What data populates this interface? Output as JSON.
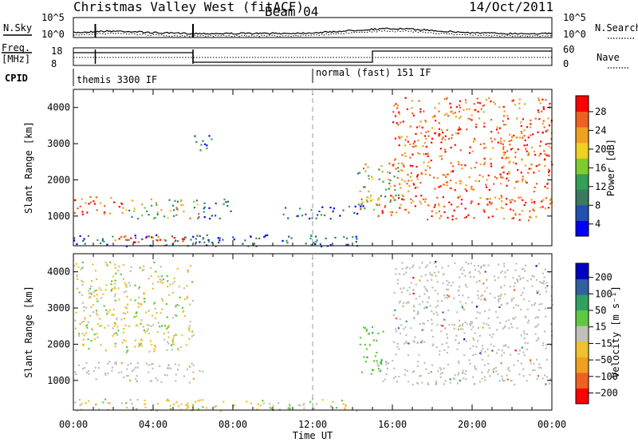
{
  "header": {
    "title": "Christmas Valley West (fitACF)",
    "beam": "Beam 04",
    "date": "14/Oct/2011"
  },
  "params": {
    "nsky_label": "N.Sky",
    "nsearch_label": "N.Search",
    "nsky_ticks": [
      "10^5",
      "10^0"
    ],
    "nsearch_ticks": [
      "10^5",
      "10^0"
    ],
    "freq_label_1": "Freq.",
    "freq_label_2": "[MHz]",
    "freq_ticks": [
      "18",
      "8"
    ],
    "nave_label": "Nave",
    "nave_ticks": [
      "60",
      "0"
    ],
    "cpid_label": "CPID",
    "cpid_modes": [
      {
        "name": "themis 3300 IF",
        "start": 0,
        "end": 12
      },
      {
        "name": "normal (fast) 151 IF",
        "start": 12,
        "end": 24
      }
    ]
  },
  "chart_data": [
    {
      "type": "heatmap",
      "name": "power",
      "ylabel": "Slant Range [km]",
      "xlabel": "Time UT",
      "xlim": [
        0,
        24
      ],
      "ylim": [
        180,
        4500
      ],
      "yticks": [
        "1000",
        "2000",
        "3000",
        "4000"
      ],
      "colorbar": {
        "label": "Power [dB]",
        "ticks": [
          "28",
          "24",
          "20",
          "16",
          "12",
          "8",
          "4"
        ],
        "range": [
          0,
          30
        ],
        "colors": [
          "#0000ff",
          "#2050b0",
          "#3a7a60",
          "#33a055",
          "#80cc30",
          "#f0d020",
          "#f0a020",
          "#f06020",
          "#ff0000"
        ]
      },
      "echo_regions": [
        {
          "t0": 0.0,
          "t1": 2.4,
          "r0": 1050,
          "r1": 1550,
          "level": "high"
        },
        {
          "t0": 2.4,
          "t1": 6.5,
          "r0": 950,
          "r1": 1500,
          "level": "mid"
        },
        {
          "t0": 6.5,
          "t1": 8.0,
          "r0": 950,
          "r1": 1500,
          "level": "low"
        },
        {
          "t0": 0.0,
          "t1": 14.5,
          "r0": 180,
          "r1": 500,
          "level": "low"
        },
        {
          "t0": 2.0,
          "t1": 5.8,
          "r0": 200,
          "r1": 480,
          "level": "high"
        },
        {
          "t0": 10.5,
          "t1": 14.5,
          "r0": 950,
          "r1": 1300,
          "level": "low"
        },
        {
          "t0": 14.2,
          "t1": 16.5,
          "r0": 1200,
          "r1": 2500,
          "level": "mid"
        },
        {
          "t0": 15.2,
          "t1": 24.0,
          "r0": 900,
          "r1": 1600,
          "level": "high"
        },
        {
          "t0": 16.0,
          "t1": 24.0,
          "r0": 1700,
          "r1": 4300,
          "level": "high"
        },
        {
          "t0": 6.0,
          "t1": 7.0,
          "r0": 2800,
          "r1": 3300,
          "level": "low"
        }
      ]
    },
    {
      "type": "heatmap",
      "name": "velocity",
      "ylabel": "Slant Range [km]",
      "xlabel": "Time UT",
      "xlim": [
        0,
        24
      ],
      "ylim": [
        180,
        4500
      ],
      "yticks": [
        "1000",
        "2000",
        "3000",
        "4000"
      ],
      "xticks": [
        "00:00",
        "04:00",
        "08:00",
        "12:00",
        "16:00",
        "20:00",
        "00:00"
      ],
      "colorbar": {
        "label": "Velocity [m s⁻¹]",
        "ticks": [
          "200",
          "100",
          "50",
          "15",
          "−15",
          "−50",
          "−100",
          "−200"
        ],
        "range": [
          -250,
          250
        ],
        "colors": [
          "#ff0000",
          "#f06020",
          "#f0a020",
          "#f0c030",
          "#c0c0b8",
          "#60c840",
          "#30a060",
          "#3060a0",
          "#0000c0"
        ]
      },
      "echo_regions": [
        {
          "t0": 0.0,
          "t1": 2.4,
          "r0": 1050,
          "r1": 1550,
          "level": "ground"
        },
        {
          "t0": 2.4,
          "t1": 6.5,
          "r0": 950,
          "r1": 1500,
          "level": "ground"
        },
        {
          "t0": 0.0,
          "t1": 14.5,
          "r0": 180,
          "r1": 500,
          "level": "neg"
        },
        {
          "t0": 14.3,
          "t1": 15.5,
          "r0": 1200,
          "r1": 2500,
          "level": "pos"
        },
        {
          "t0": 15.2,
          "t1": 24.0,
          "r0": 900,
          "r1": 1600,
          "level": "ground"
        },
        {
          "t0": 16.0,
          "t1": 24.0,
          "r0": 1700,
          "r1": 4300,
          "level": "ground"
        },
        {
          "t0": 0.0,
          "t1": 6.0,
          "r0": 1800,
          "r1": 4300,
          "level": "neg"
        }
      ]
    }
  ]
}
